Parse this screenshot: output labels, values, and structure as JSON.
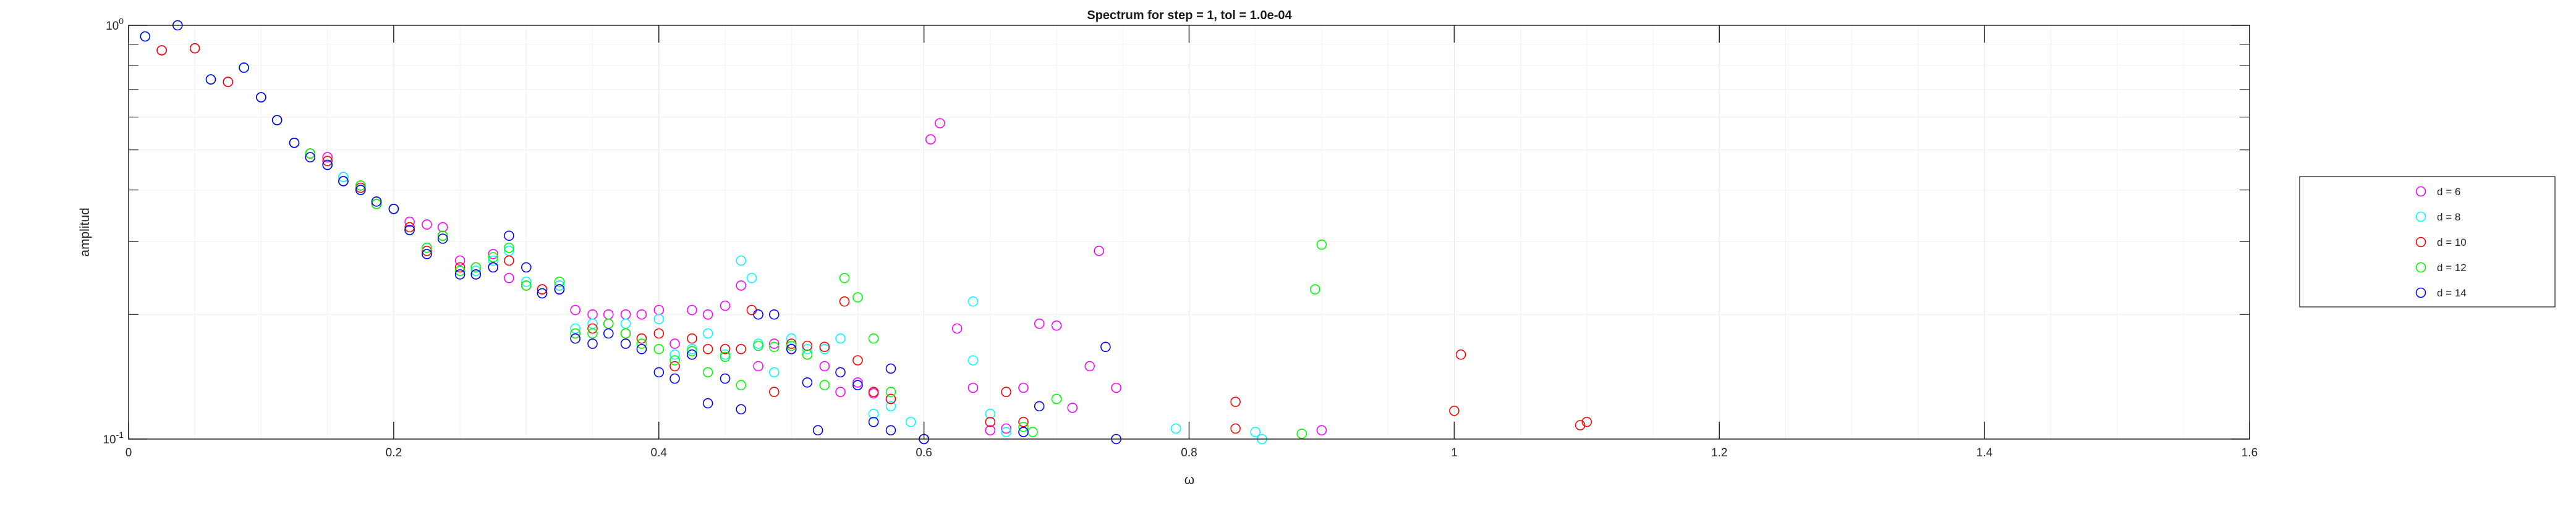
{
  "chart_data": {
    "type": "scatter",
    "title": "Spectrum for step = 1, tol = 1.0e-04",
    "xlabel": "ω",
    "ylabel": "amplitud",
    "xlim": [
      0,
      1.6
    ],
    "ylim": [
      0.1,
      1
    ],
    "yscale": "log",
    "x_ticks": [
      0,
      0.2,
      0.4,
      0.6,
      0.8,
      1,
      1.2,
      1.4,
      1.6
    ],
    "x_tick_labels": [
      "0",
      "0.2",
      "0.4",
      "0.6",
      "0.8",
      "1",
      "1.2",
      "1.4",
      "1.6"
    ],
    "y_ticks": [
      0.1,
      1
    ],
    "y_tick_labels": [
      {
        "base": "10",
        "exp": "-1"
      },
      {
        "base": "10",
        "exp": "0"
      }
    ],
    "grid": true,
    "legend_position": "right",
    "marker": "open-circle",
    "series": [
      {
        "name": "d = 6",
        "color": "#ff00ff",
        "points": [
          [
            0.025,
            0.87
          ],
          [
            0.05,
            0.88
          ],
          [
            0.075,
            0.73
          ],
          [
            0.1,
            0.67
          ],
          [
            0.112,
            0.59
          ],
          [
            0.125,
            0.52
          ],
          [
            0.137,
            0.49
          ],
          [
            0.15,
            0.48
          ],
          [
            0.162,
            0.43
          ],
          [
            0.175,
            0.41
          ],
          [
            0.187,
            0.37
          ],
          [
            0.2,
            0.36
          ],
          [
            0.212,
            0.335
          ],
          [
            0.225,
            0.33
          ],
          [
            0.237,
            0.325
          ],
          [
            0.25,
            0.27
          ],
          [
            0.262,
            0.26
          ],
          [
            0.275,
            0.28
          ],
          [
            0.287,
            0.245
          ],
          [
            0.3,
            0.235
          ],
          [
            0.312,
            0.23
          ],
          [
            0.325,
            0.235
          ],
          [
            0.337,
            0.205
          ],
          [
            0.35,
            0.2
          ],
          [
            0.362,
            0.2
          ],
          [
            0.375,
            0.2
          ],
          [
            0.387,
            0.2
          ],
          [
            0.4,
            0.205
          ],
          [
            0.412,
            0.17
          ],
          [
            0.425,
            0.205
          ],
          [
            0.437,
            0.2
          ],
          [
            0.45,
            0.21
          ],
          [
            0.462,
            0.235
          ],
          [
            0.475,
            0.15
          ],
          [
            0.487,
            0.17
          ],
          [
            0.5,
            0.165
          ],
          [
            0.512,
            0.16
          ],
          [
            0.525,
            0.15
          ],
          [
            0.537,
            0.13
          ],
          [
            0.55,
            0.137
          ],
          [
            0.562,
            0.129
          ],
          [
            0.575,
            0.125
          ],
          [
            0.605,
            0.53
          ],
          [
            0.612,
            0.58
          ],
          [
            0.625,
            0.185
          ],
          [
            0.637,
            0.133
          ],
          [
            0.65,
            0.105
          ],
          [
            0.662,
            0.106
          ],
          [
            0.675,
            0.133
          ],
          [
            0.687,
            0.19
          ],
          [
            0.7,
            0.188
          ],
          [
            0.712,
            0.119
          ],
          [
            0.725,
            0.15
          ],
          [
            0.732,
            0.285
          ],
          [
            0.745,
            0.133
          ],
          [
            0.9,
            0.105
          ]
        ]
      },
      {
        "name": "d = 8",
        "color": "#00ffff",
        "points": [
          [
            0.0125,
            0.94
          ],
          [
            0.05,
            0.88
          ],
          [
            0.062,
            0.74
          ],
          [
            0.087,
            0.79
          ],
          [
            0.1,
            0.67
          ],
          [
            0.112,
            0.59
          ],
          [
            0.125,
            0.52
          ],
          [
            0.137,
            0.49
          ],
          [
            0.15,
            0.46
          ],
          [
            0.162,
            0.43
          ],
          [
            0.175,
            0.4
          ],
          [
            0.187,
            0.375
          ],
          [
            0.2,
            0.36
          ],
          [
            0.212,
            0.32
          ],
          [
            0.225,
            0.29
          ],
          [
            0.237,
            0.31
          ],
          [
            0.25,
            0.255
          ],
          [
            0.262,
            0.255
          ],
          [
            0.275,
            0.27
          ],
          [
            0.287,
            0.285
          ],
          [
            0.3,
            0.24
          ],
          [
            0.312,
            0.225
          ],
          [
            0.325,
            0.235
          ],
          [
            0.337,
            0.185
          ],
          [
            0.35,
            0.19
          ],
          [
            0.362,
            0.19
          ],
          [
            0.375,
            0.19
          ],
          [
            0.387,
            0.175
          ],
          [
            0.4,
            0.195
          ],
          [
            0.412,
            0.16
          ],
          [
            0.425,
            0.165
          ],
          [
            0.437,
            0.18
          ],
          [
            0.45,
            0.16
          ],
          [
            0.462,
            0.27
          ],
          [
            0.47,
            0.245
          ],
          [
            0.475,
            0.17
          ],
          [
            0.487,
            0.145
          ],
          [
            0.5,
            0.175
          ],
          [
            0.512,
            0.165
          ],
          [
            0.525,
            0.165
          ],
          [
            0.537,
            0.175
          ],
          [
            0.55,
            0.135
          ],
          [
            0.562,
            0.115
          ],
          [
            0.575,
            0.12
          ],
          [
            0.59,
            0.11
          ],
          [
            0.6,
            0.1
          ],
          [
            0.637,
            0.215
          ],
          [
            0.637,
            0.155
          ],
          [
            0.65,
            0.115
          ],
          [
            0.662,
            0.104
          ],
          [
            0.675,
            0.104
          ],
          [
            0.79,
            0.106
          ],
          [
            0.85,
            0.104
          ],
          [
            0.855,
            0.1
          ]
        ]
      },
      {
        "name": "d = 10",
        "color": "#ff0000",
        "points": [
          [
            0.025,
            0.87
          ],
          [
            0.05,
            0.88
          ],
          [
            0.075,
            0.73
          ],
          [
            0.1,
            0.67
          ],
          [
            0.112,
            0.59
          ],
          [
            0.125,
            0.52
          ],
          [
            0.137,
            0.49
          ],
          [
            0.15,
            0.47
          ],
          [
            0.162,
            0.42
          ],
          [
            0.175,
            0.405
          ],
          [
            0.187,
            0.37
          ],
          [
            0.2,
            0.36
          ],
          [
            0.212,
            0.325
          ],
          [
            0.225,
            0.285
          ],
          [
            0.237,
            0.31
          ],
          [
            0.25,
            0.26
          ],
          [
            0.262,
            0.25
          ],
          [
            0.275,
            0.26
          ],
          [
            0.287,
            0.27
          ],
          [
            0.3,
            0.235
          ],
          [
            0.312,
            0.23
          ],
          [
            0.325,
            0.23
          ],
          [
            0.337,
            0.18
          ],
          [
            0.35,
            0.185
          ],
          [
            0.362,
            0.19
          ],
          [
            0.375,
            0.18
          ],
          [
            0.387,
            0.175
          ],
          [
            0.4,
            0.18
          ],
          [
            0.412,
            0.15
          ],
          [
            0.425,
            0.175
          ],
          [
            0.437,
            0.165
          ],
          [
            0.45,
            0.165
          ],
          [
            0.462,
            0.165
          ],
          [
            0.47,
            0.205
          ],
          [
            0.487,
            0.13
          ],
          [
            0.5,
            0.17
          ],
          [
            0.512,
            0.168
          ],
          [
            0.525,
            0.167
          ],
          [
            0.54,
            0.215
          ],
          [
            0.55,
            0.155
          ],
          [
            0.562,
            0.13
          ],
          [
            0.575,
            0.125
          ],
          [
            0.6,
            0.1
          ],
          [
            0.65,
            0.11
          ],
          [
            0.662,
            0.13
          ],
          [
            0.675,
            0.11
          ],
          [
            0.835,
            0.106
          ],
          [
            0.835,
            0.123
          ],
          [
            1.0,
            0.117
          ],
          [
            1.005,
            0.16
          ],
          [
            1.095,
            0.108
          ],
          [
            1.1,
            0.11
          ]
        ]
      },
      {
        "name": "d = 12",
        "color": "#00ff00",
        "points": [
          [
            0.0125,
            0.94
          ],
          [
            0.037,
            1.0
          ],
          [
            0.062,
            0.74
          ],
          [
            0.087,
            0.79
          ],
          [
            0.1,
            0.67
          ],
          [
            0.112,
            0.59
          ],
          [
            0.125,
            0.52
          ],
          [
            0.137,
            0.49
          ],
          [
            0.15,
            0.46
          ],
          [
            0.162,
            0.42
          ],
          [
            0.175,
            0.41
          ],
          [
            0.187,
            0.37
          ],
          [
            0.2,
            0.36
          ],
          [
            0.212,
            0.32
          ],
          [
            0.225,
            0.29
          ],
          [
            0.237,
            0.31
          ],
          [
            0.25,
            0.255
          ],
          [
            0.262,
            0.26
          ],
          [
            0.275,
            0.275
          ],
          [
            0.287,
            0.29
          ],
          [
            0.3,
            0.235
          ],
          [
            0.312,
            0.225
          ],
          [
            0.325,
            0.24
          ],
          [
            0.337,
            0.18
          ],
          [
            0.35,
            0.18
          ],
          [
            0.362,
            0.19
          ],
          [
            0.375,
            0.18
          ],
          [
            0.387,
            0.17
          ],
          [
            0.4,
            0.165
          ],
          [
            0.412,
            0.155
          ],
          [
            0.425,
            0.163
          ],
          [
            0.437,
            0.145
          ],
          [
            0.45,
            0.158
          ],
          [
            0.462,
            0.135
          ],
          [
            0.475,
            0.168
          ],
          [
            0.487,
            0.167
          ],
          [
            0.5,
            0.168
          ],
          [
            0.512,
            0.16
          ],
          [
            0.525,
            0.135
          ],
          [
            0.54,
            0.245
          ],
          [
            0.55,
            0.22
          ],
          [
            0.562,
            0.175
          ],
          [
            0.575,
            0.13
          ],
          [
            0.675,
            0.107
          ],
          [
            0.682,
            0.104
          ],
          [
            0.7,
            0.125
          ],
          [
            0.885,
            0.103
          ],
          [
            0.895,
            0.23
          ],
          [
            0.9,
            0.295
          ]
        ]
      },
      {
        "name": "d = 14",
        "color": "#0000ff",
        "points": [
          [
            0.0125,
            0.94
          ],
          [
            0.037,
            1.0
          ],
          [
            0.062,
            0.74
          ],
          [
            0.087,
            0.79
          ],
          [
            0.1,
            0.67
          ],
          [
            0.112,
            0.59
          ],
          [
            0.125,
            0.52
          ],
          [
            0.137,
            0.48
          ],
          [
            0.15,
            0.46
          ],
          [
            0.162,
            0.42
          ],
          [
            0.175,
            0.4
          ],
          [
            0.187,
            0.375
          ],
          [
            0.2,
            0.36
          ],
          [
            0.212,
            0.32
          ],
          [
            0.225,
            0.28
          ],
          [
            0.237,
            0.305
          ],
          [
            0.25,
            0.25
          ],
          [
            0.262,
            0.25
          ],
          [
            0.275,
            0.26
          ],
          [
            0.287,
            0.31
          ],
          [
            0.3,
            0.26
          ],
          [
            0.312,
            0.225
          ],
          [
            0.325,
            0.23
          ],
          [
            0.337,
            0.175
          ],
          [
            0.35,
            0.17
          ],
          [
            0.362,
            0.18
          ],
          [
            0.375,
            0.17
          ],
          [
            0.387,
            0.165
          ],
          [
            0.4,
            0.145
          ],
          [
            0.412,
            0.14
          ],
          [
            0.425,
            0.16
          ],
          [
            0.437,
            0.122
          ],
          [
            0.45,
            0.14
          ],
          [
            0.462,
            0.118
          ],
          [
            0.475,
            0.2
          ],
          [
            0.487,
            0.2
          ],
          [
            0.5,
            0.165
          ],
          [
            0.512,
            0.137
          ],
          [
            0.52,
            0.105
          ],
          [
            0.537,
            0.145
          ],
          [
            0.55,
            0.135
          ],
          [
            0.562,
            0.11
          ],
          [
            0.575,
            0.105
          ],
          [
            0.575,
            0.148
          ],
          [
            0.6,
            0.1
          ],
          [
            0.675,
            0.104
          ],
          [
            0.687,
            0.12
          ],
          [
            0.737,
            0.167
          ],
          [
            0.745,
            0.1
          ]
        ]
      }
    ]
  }
}
